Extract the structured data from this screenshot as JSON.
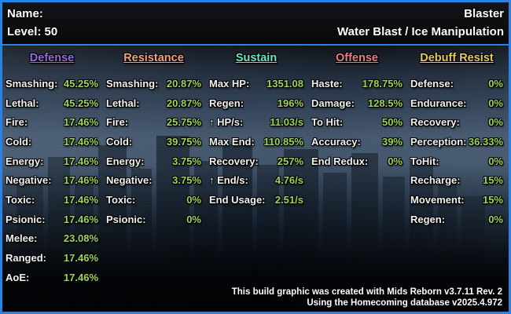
{
  "header": {
    "name_label": "Name:",
    "archetype": "Blaster",
    "level_label": "Level: 50",
    "powersets": "Water Blast / Ice Manipulation"
  },
  "columns": [
    {
      "title": "Defense",
      "color": "#9a6ad8",
      "rows": [
        {
          "label": "Smashing:",
          "value": "45.25%"
        },
        {
          "label": "Lethal:",
          "value": "45.25%"
        },
        {
          "label": "Fire:",
          "value": "17.46%"
        },
        {
          "label": "Cold:",
          "value": "17.46%"
        },
        {
          "label": "Energy:",
          "value": "17.46%"
        },
        {
          "label": "Negative:",
          "value": "17.46%"
        },
        {
          "label": "Toxic:",
          "value": "17.46%"
        },
        {
          "label": "Psionic:",
          "value": "17.46%"
        },
        {
          "label": "Melee:",
          "value": "23.08%"
        },
        {
          "label": "Ranged:",
          "value": "17.46%"
        },
        {
          "label": "AoE:",
          "value": "17.46%"
        }
      ]
    },
    {
      "title": "Resistance",
      "color": "#f2a181",
      "rows": [
        {
          "label": "Smashing:",
          "value": "20.87%"
        },
        {
          "label": "Lethal:",
          "value": "20.87%"
        },
        {
          "label": "Fire:",
          "value": "25.75%"
        },
        {
          "label": "Cold:",
          "value": "39.75%"
        },
        {
          "label": "Energy:",
          "value": "3.75%"
        },
        {
          "label": "Negative:",
          "value": "3.75%"
        },
        {
          "label": "Toxic:",
          "value": "0%"
        },
        {
          "label": "Psionic:",
          "value": "0%"
        }
      ]
    },
    {
      "title": "Sustain",
      "color": "#6ce8c6",
      "rows": [
        {
          "label": "Max HP:",
          "value": "1351.08"
        },
        {
          "label": "Regen:",
          "value": "196%"
        },
        {
          "label": "↑ HP/s:",
          "value": "11.03/s"
        },
        {
          "label": "Max End:",
          "value": "110.85%"
        },
        {
          "label": "Recovery:",
          "value": "257%"
        },
        {
          "label": "↑ End/s:",
          "value": "4.76/s"
        },
        {
          "label": "End Usage:",
          "value": "2.51/s"
        }
      ]
    },
    {
      "title": "Offense",
      "color": "#ea7d85",
      "rows": [
        {
          "label": "Haste:",
          "value": "178.75%"
        },
        {
          "label": "Damage:",
          "value": "128.5%"
        },
        {
          "label": "To Hit:",
          "value": "50%"
        },
        {
          "label": "Accuracy:",
          "value": "39%"
        },
        {
          "label": "End Redux:",
          "value": "0%"
        }
      ]
    },
    {
      "title": "Debuff Resist",
      "color": "#e7ca5f",
      "rows": [
        {
          "label": "Defense:",
          "value": "0%"
        },
        {
          "label": "Endurance:",
          "value": "0%"
        },
        {
          "label": "Recovery:",
          "value": "0%"
        },
        {
          "label": "Perception:",
          "value": "36.33%"
        },
        {
          "label": "ToHit:",
          "value": "0%"
        },
        {
          "label": "Recharge:",
          "value": "15%"
        },
        {
          "label": "Movement:",
          "value": "15%"
        },
        {
          "label": "Regen:",
          "value": "0%"
        }
      ]
    }
  ],
  "footer": {
    "line1": "This build graphic was created with Mids Reborn v3.7.11 Rev. 2",
    "line2": "Using the Homecoming database v2025.4.972"
  },
  "colors": {
    "border_blue": "#2a82e4",
    "value_green": "#9dd45c",
    "label_white": "#f2f2f2"
  }
}
